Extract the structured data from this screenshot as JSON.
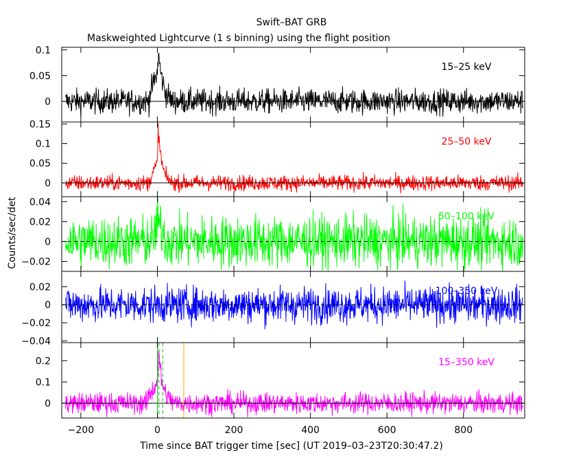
{
  "title": "Swift–BAT GRB",
  "subtitle": "Maskweighted Lightcurve (1 s binning) using the flight position",
  "xlabel": "Time since BAT trigger time [sec] (UT 2019–03–23T20:30:47.2)",
  "ylabel": "Counts/sec/det",
  "colors": {
    "band_15_25": "#000000",
    "band_25_50": "#ff0000",
    "band_50_100": "#00ff00",
    "band_100_350": "#0000ff",
    "band_15_350": "#ff00ff",
    "marker_orange": "#ffa500",
    "marker_green": "#00c000"
  },
  "chart_data": {
    "type": "line",
    "x_range": [
      -250,
      960
    ],
    "x_ticks": [
      -200,
      0,
      200,
      400,
      600,
      800
    ],
    "x_tick_labels": [
      "−200",
      "0",
      "200",
      "400",
      "600",
      "800"
    ],
    "series": [
      {
        "name": "15–25 keV",
        "ylim": [
          -0.04,
          0.105
        ],
        "y_ticks": [
          0,
          0.05,
          0.1
        ],
        "y_tick_labels": [
          "0",
          "0.05",
          "0.1"
        ],
        "noise": 0.012,
        "burst": [
          [
            -20,
            0.015
          ],
          [
            0,
            0.055
          ],
          [
            3,
            0.095
          ],
          [
            6,
            0.07
          ],
          [
            10,
            0.05
          ],
          [
            15,
            0.035
          ],
          [
            22,
            0.015
          ],
          [
            35,
            0.005
          ]
        ],
        "zero_dashed": false
      },
      {
        "name": "25–50 keV",
        "ylim": [
          -0.035,
          0.155
        ],
        "y_ticks": [
          0,
          0.05,
          0.1,
          0.15
        ],
        "y_tick_labels": [
          "0",
          "0.05",
          "0.1",
          "0.15"
        ],
        "noise": 0.01,
        "burst": [
          [
            -20,
            0.01
          ],
          [
            0,
            0.05
          ],
          [
            2,
            0.14
          ],
          [
            5,
            0.1
          ],
          [
            9,
            0.07
          ],
          [
            14,
            0.04
          ],
          [
            22,
            0.015
          ],
          [
            35,
            0.005
          ]
        ],
        "zero_dashed": false
      },
      {
        "name": "50–100 keV",
        "ylim": [
          -0.03,
          0.045
        ],
        "y_ticks": [
          -0.02,
          0,
          0.02,
          0.04
        ],
        "y_tick_labels": [
          "−0.02",
          "0",
          "0.02",
          "0.04"
        ],
        "noise": 0.013,
        "burst": [
          [
            -10,
            0.005
          ],
          [
            2,
            0.02
          ],
          [
            8,
            0.015
          ],
          [
            20,
            0.005
          ]
        ],
        "zero_dashed": true
      },
      {
        "name": "100–350 keV",
        "ylim": [
          -0.042,
          0.037
        ],
        "y_ticks": [
          -0.04,
          -0.02,
          0,
          0.02
        ],
        "y_tick_labels": [
          "−0.04",
          "−0.02",
          "0",
          "0.02"
        ],
        "noise": 0.01,
        "burst": [],
        "zero_dashed": true
      },
      {
        "name": "15–350 keV",
        "ylim": [
          -0.07,
          0.285
        ],
        "y_ticks": [
          0,
          0.1,
          0.2
        ],
        "y_tick_labels": [
          "0",
          "0.1",
          "0.2"
        ],
        "noise": 0.025,
        "burst": [
          [
            -25,
            0.03
          ],
          [
            -5,
            0.08
          ],
          [
            1,
            0.12
          ],
          [
            3,
            0.26
          ],
          [
            6,
            0.18
          ],
          [
            10,
            0.12
          ],
          [
            16,
            0.07
          ],
          [
            25,
            0.03
          ],
          [
            40,
            0.01
          ]
        ],
        "zero_dashed": false,
        "markers": [
          {
            "x": 0,
            "color": "marker_green",
            "dashed": false
          },
          {
            "x": 4,
            "color": "marker_green",
            "dashed": true
          },
          {
            "x": 14,
            "color": "marker_green",
            "dashed": true
          },
          {
            "x": 69,
            "color": "marker_orange",
            "dashed": false
          }
        ]
      }
    ]
  }
}
